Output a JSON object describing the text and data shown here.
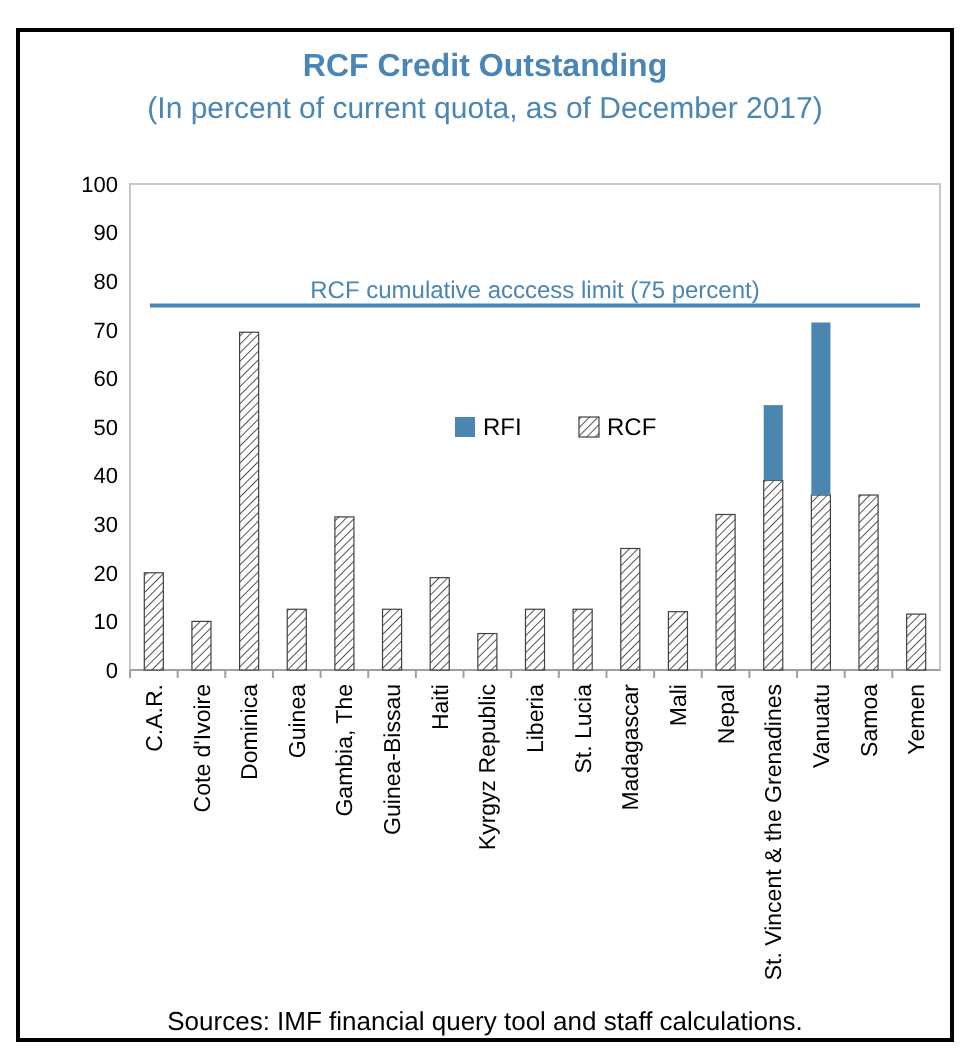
{
  "chart_data": {
    "type": "bar",
    "title": "RCF Credit Outstanding",
    "subtitle": "(In percent of current quota, as of December 2017)",
    "categories": [
      "C.A.R.",
      "Cote d'Ivoire",
      "Dominica",
      "Guinea",
      "Gambia, The",
      "Guinea-Bissau",
      "Haiti",
      "Kyrgyz Republic",
      "Liberia",
      "St. Lucia",
      "Madagascar",
      "Mali",
      "Nepal",
      "St. Vincent & the Grenadines",
      "Vanuatu",
      "Samoa",
      "Yemen"
    ],
    "stacked": true,
    "series": [
      {
        "name": "RCF",
        "color": "#404040",
        "values": [
          20,
          10,
          69.5,
          12.5,
          31.5,
          12.5,
          19,
          7.5,
          12.5,
          12.5,
          25,
          12,
          32,
          39,
          36,
          36,
          11.5
        ]
      },
      {
        "name": "RFI",
        "color": "#4a86b0",
        "values": [
          null,
          null,
          null,
          null,
          null,
          null,
          null,
          null,
          null,
          null,
          null,
          null,
          null,
          15.5,
          35.5,
          null,
          null
        ]
      }
    ],
    "ylim": [
      0,
      100
    ],
    "yticks": [
      0,
      10,
      20,
      30,
      40,
      50,
      60,
      70,
      80,
      90,
      100
    ],
    "ref_lines": [
      {
        "axis": "y",
        "value": 75,
        "label": "RCF cumulative acccess limit (75 percent)",
        "color": "#4a86b5"
      }
    ],
    "legend": "center",
    "grid": false,
    "annotations": [
      "Sources: IMF financial query tool and staff calculations."
    ]
  }
}
